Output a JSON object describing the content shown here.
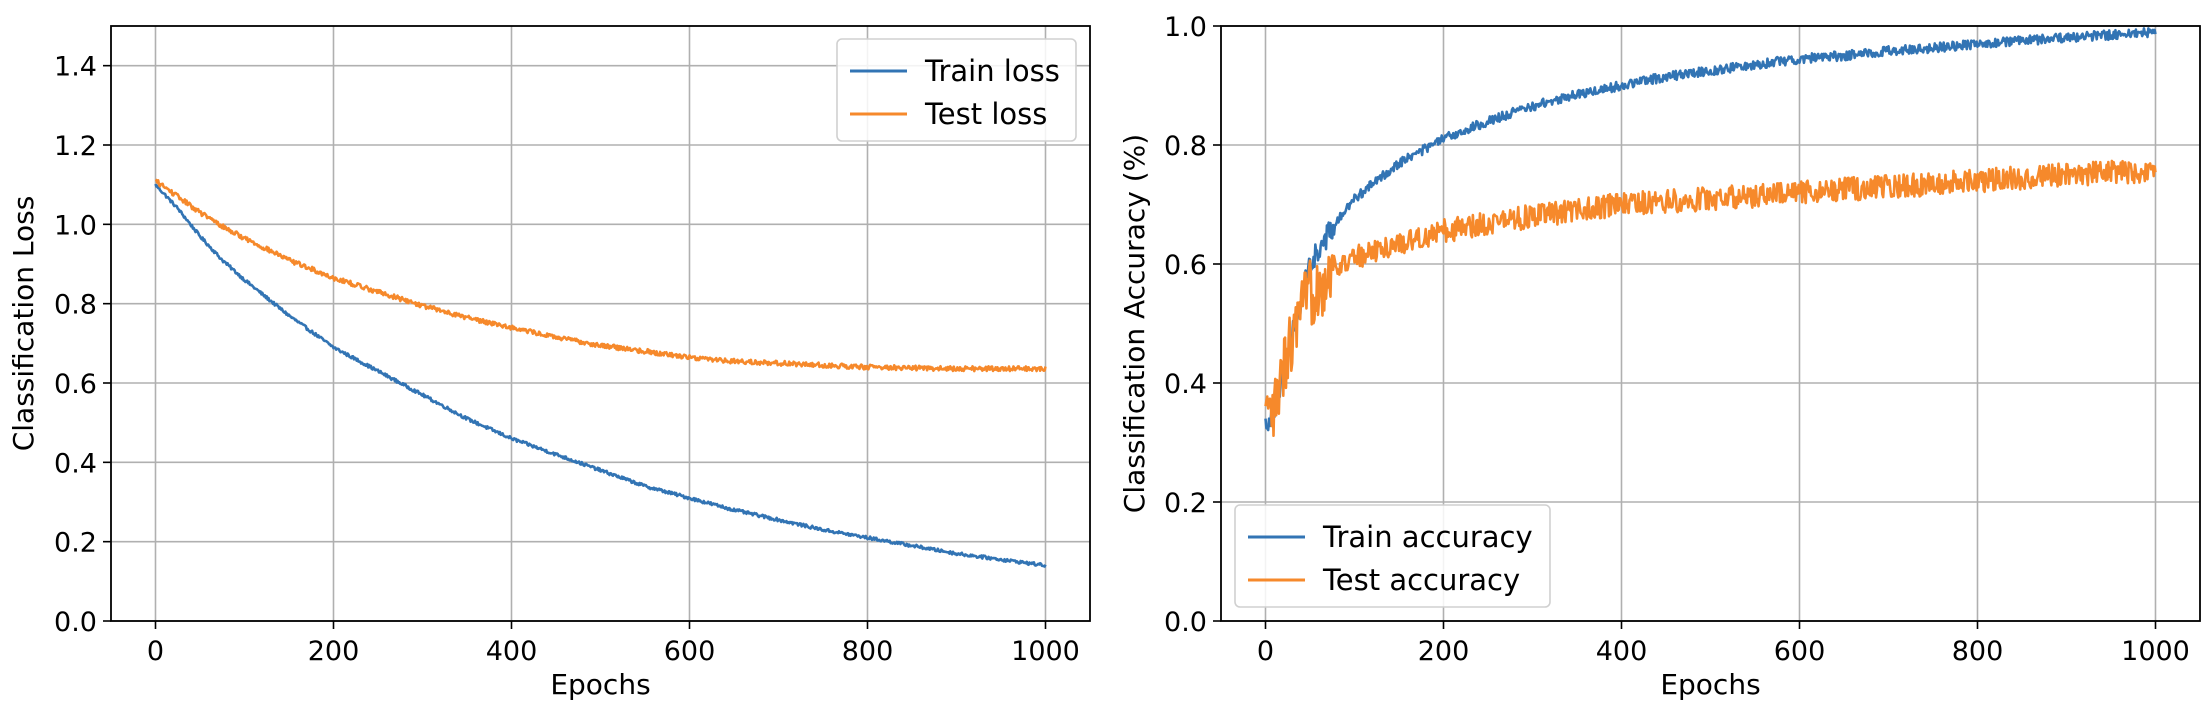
{
  "colors": {
    "train": "#3274b4",
    "test": "#f6892b"
  },
  "chart_data": [
    {
      "type": "line",
      "xlabel": "Epochs",
      "ylabel": "Classification Loss",
      "xlim": [
        -50,
        1050
      ],
      "ylim": [
        0.0,
        1.5
      ],
      "xticks": [
        0,
        200,
        400,
        600,
        800,
        1000
      ],
      "xtick_labels": [
        "0",
        "200",
        "400",
        "600",
        "800",
        "1000"
      ],
      "yticks": [
        0.0,
        0.2,
        0.4,
        0.6,
        0.8,
        1.0,
        1.2,
        1.4
      ],
      "ytick_labels": [
        "0.0",
        "0.2",
        "0.4",
        "0.6",
        "0.8",
        "1.0",
        "1.2",
        "1.4"
      ],
      "grid": true,
      "legend_position": "upper-right",
      "series": [
        {
          "name": "Train loss",
          "color": "#3274b4",
          "noise": 0.004,
          "x": [
            0,
            25,
            50,
            75,
            100,
            150,
            200,
            250,
            300,
            350,
            400,
            450,
            500,
            550,
            600,
            650,
            700,
            750,
            800,
            850,
            900,
            950,
            1000
          ],
          "y": [
            1.1,
            1.04,
            0.97,
            0.91,
            0.86,
            0.77,
            0.69,
            0.63,
            0.57,
            0.51,
            0.46,
            0.42,
            0.38,
            0.34,
            0.31,
            0.28,
            0.255,
            0.23,
            0.21,
            0.19,
            0.17,
            0.155,
            0.14
          ]
        },
        {
          "name": "Test loss",
          "color": "#f6892b",
          "noise": 0.006,
          "x": [
            0,
            25,
            50,
            75,
            100,
            150,
            200,
            250,
            300,
            350,
            400,
            450,
            500,
            550,
            600,
            650,
            700,
            750,
            800,
            850,
            900,
            950,
            1000
          ],
          "y": [
            1.11,
            1.07,
            1.03,
            0.995,
            0.965,
            0.91,
            0.865,
            0.83,
            0.795,
            0.765,
            0.74,
            0.715,
            0.695,
            0.68,
            0.665,
            0.655,
            0.65,
            0.645,
            0.64,
            0.638,
            0.636,
            0.636,
            0.636
          ]
        }
      ]
    },
    {
      "type": "line",
      "xlabel": "Epochs",
      "ylabel": "Classification Accuracy (%)",
      "xlim": [
        -50,
        1050
      ],
      "ylim": [
        0.0,
        1.0
      ],
      "xticks": [
        0,
        200,
        400,
        600,
        800,
        1000
      ],
      "xtick_labels": [
        "0",
        "200",
        "400",
        "600",
        "800",
        "1000"
      ],
      "yticks": [
        0.0,
        0.2,
        0.4,
        0.6,
        0.8,
        1.0
      ],
      "ytick_labels": [
        "0.0",
        "0.2",
        "0.4",
        "0.6",
        "0.8",
        "1.0"
      ],
      "grid": true,
      "legend_position": "lower-left",
      "series": [
        {
          "name": "Train accuracy",
          "color": "#3274b4",
          "noise": 0.008,
          "x": [
            0,
            10,
            25,
            50,
            75,
            100,
            150,
            200,
            250,
            300,
            350,
            400,
            450,
            500,
            550,
            600,
            650,
            700,
            750,
            800,
            850,
            900,
            950,
            1000
          ],
          "y": [
            0.33,
            0.36,
            0.45,
            0.6,
            0.66,
            0.71,
            0.77,
            0.81,
            0.84,
            0.865,
            0.885,
            0.9,
            0.915,
            0.925,
            0.935,
            0.945,
            0.95,
            0.958,
            0.963,
            0.97,
            0.975,
            0.98,
            0.985,
            0.99
          ]
        },
        {
          "name": "Test accuracy",
          "color": "#f6892b",
          "noise": 0.02,
          "x": [
            0,
            10,
            25,
            50,
            75,
            100,
            150,
            200,
            250,
            300,
            350,
            400,
            450,
            500,
            550,
            600,
            650,
            700,
            750,
            800,
            850,
            900,
            950,
            1000
          ],
          "y": [
            0.33,
            0.35,
            0.45,
            0.55,
            0.59,
            0.61,
            0.635,
            0.655,
            0.67,
            0.68,
            0.69,
            0.7,
            0.705,
            0.71,
            0.715,
            0.72,
            0.725,
            0.73,
            0.735,
            0.74,
            0.745,
            0.75,
            0.755,
            0.755
          ]
        }
      ]
    }
  ]
}
